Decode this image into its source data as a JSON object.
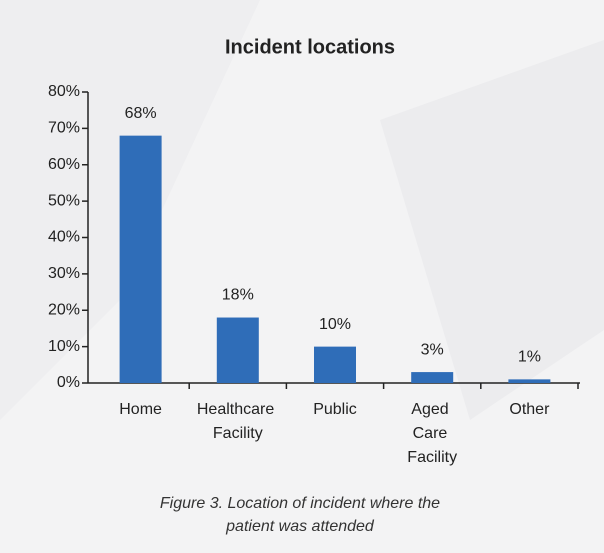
{
  "chart_data": {
    "type": "bar",
    "title": "Incident locations",
    "categories": [
      "Home",
      "Healthcare Facility",
      "Public",
      "Aged Care Facility",
      "Other"
    ],
    "values": [
      68,
      18,
      10,
      3,
      1
    ],
    "value_labels": [
      "68%",
      "18%",
      "10%",
      "3%",
      "1%"
    ],
    "color": "#2f6db8",
    "ylim": [
      0,
      80
    ],
    "yticks": [
      {
        "value": 0,
        "label": "0%"
      },
      {
        "value": 10,
        "label": "10%"
      },
      {
        "value": 20,
        "label": "20%"
      },
      {
        "value": 30,
        "label": "30%"
      },
      {
        "value": 40,
        "label": "40%"
      },
      {
        "value": 50,
        "label": "50%"
      },
      {
        "value": 60,
        "label": "60%"
      },
      {
        "value": 70,
        "label": "70%"
      },
      {
        "value": 80,
        "label": "80%"
      }
    ],
    "grid": false,
    "caption": "Figure 3. Location of incident where the patient was attended"
  }
}
